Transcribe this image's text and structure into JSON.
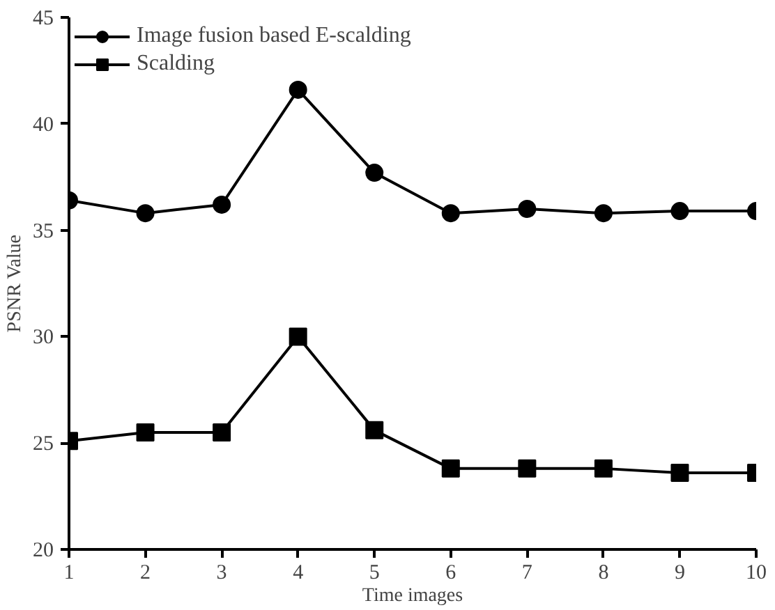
{
  "chart_data": {
    "type": "line",
    "xlabel": "Time images",
    "ylabel": "PSNR Value",
    "x": [
      1,
      2,
      3,
      4,
      5,
      6,
      7,
      8,
      9,
      10
    ],
    "series": [
      {
        "name": "Image fusion based E-scalding",
        "color": "#000000",
        "marker": "circle",
        "values": [
          36.4,
          35.8,
          36.2,
          41.6,
          37.7,
          35.8,
          36.0,
          35.8,
          35.9,
          35.9
        ]
      },
      {
        "name": "Scalding",
        "color": "#000000",
        "marker": "square",
        "values": [
          25.1,
          25.5,
          25.5,
          30.0,
          25.6,
          23.8,
          23.8,
          23.8,
          23.6,
          23.6
        ]
      }
    ],
    "xlim": [
      1,
      10
    ],
    "xticks": [
      1,
      2,
      3,
      4,
      5,
      6,
      7,
      8,
      9,
      10
    ],
    "ylim": [
      20,
      45
    ],
    "yticks": [
      20,
      25,
      30,
      35,
      40,
      45
    ],
    "grid": false,
    "legend": "top left",
    "line_style": "solid"
  }
}
